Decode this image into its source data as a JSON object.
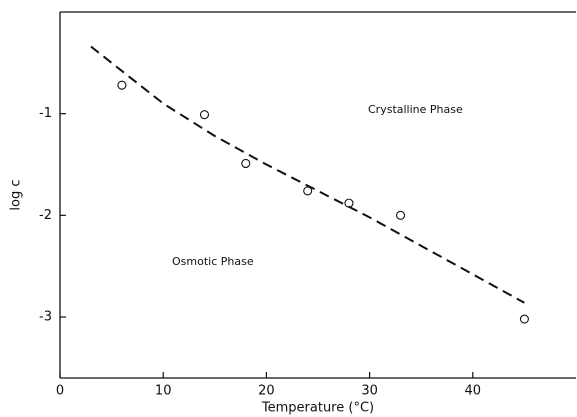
{
  "chart_data": {
    "type": "scatter",
    "x_label": "Temperature (°C)",
    "y_label": "log c",
    "annotations": [
      "Crystalline Phase",
      "Osmotic Phase"
    ],
    "xlim": [
      0,
      50
    ],
    "ylim": [
      -3.6,
      0
    ],
    "xticks": [
      0,
      10,
      20,
      30,
      40
    ],
    "yticks": [
      -1,
      -2,
      -3
    ],
    "grid": false,
    "series": [
      {
        "mode": "markers",
        "color": "#111111",
        "x": [
          6,
          14,
          18,
          24,
          28,
          33,
          45
        ],
        "values": [
          -0.72,
          -1.01,
          -1.49,
          -1.76,
          -1.88,
          -2.0,
          -3.02
        ]
      },
      {
        "mode": "dashed-line",
        "color": "#111111",
        "x": [
          3,
          10,
          15,
          20,
          25,
          30,
          35,
          40,
          45
        ],
        "values": [
          -0.34,
          -0.9,
          -1.22,
          -1.5,
          -1.76,
          -2.02,
          -2.3,
          -2.58,
          -2.86
        ]
      }
    ]
  }
}
